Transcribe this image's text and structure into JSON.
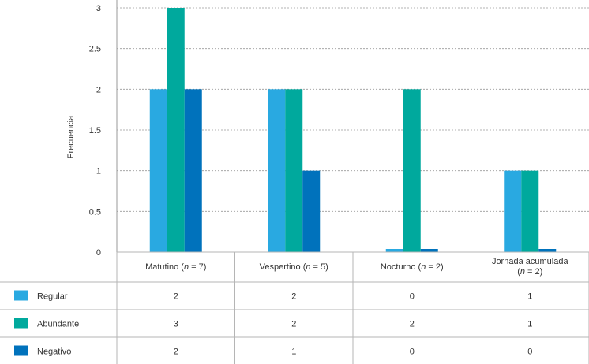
{
  "chart_data": {
    "type": "bar",
    "ylabel": "Frecuencia",
    "ylim": [
      0,
      3
    ],
    "yticks": [
      "0",
      "0.5",
      "1",
      "1.5",
      "2",
      "2.5",
      "3"
    ],
    "grid": true,
    "categories": [
      {
        "name": "Matutino",
        "n_label": "n",
        "n_value": "= 7"
      },
      {
        "name": "Vespertino",
        "n_label": "n",
        "n_value": "= 5"
      },
      {
        "name": "Nocturno",
        "n_label": "n",
        "n_value": "= 2"
      },
      {
        "name": "Jornada acumulada",
        "n_label": "n",
        "n_value": "= 2"
      }
    ],
    "series": [
      {
        "name": "Regular",
        "color": "#29a9e1",
        "values": [
          2,
          2,
          0,
          1
        ]
      },
      {
        "name": "Abundante",
        "color": "#00a99d",
        "values": [
          3,
          2,
          2,
          1
        ]
      },
      {
        "name": "Negativo",
        "color": "#0072bc",
        "values": [
          2,
          1,
          0,
          0
        ]
      }
    ],
    "table_values": [
      [
        "2",
        "2",
        "0",
        "1"
      ],
      [
        "3",
        "2",
        "2",
        "1"
      ],
      [
        "2",
        "1",
        "0",
        "0"
      ]
    ]
  }
}
